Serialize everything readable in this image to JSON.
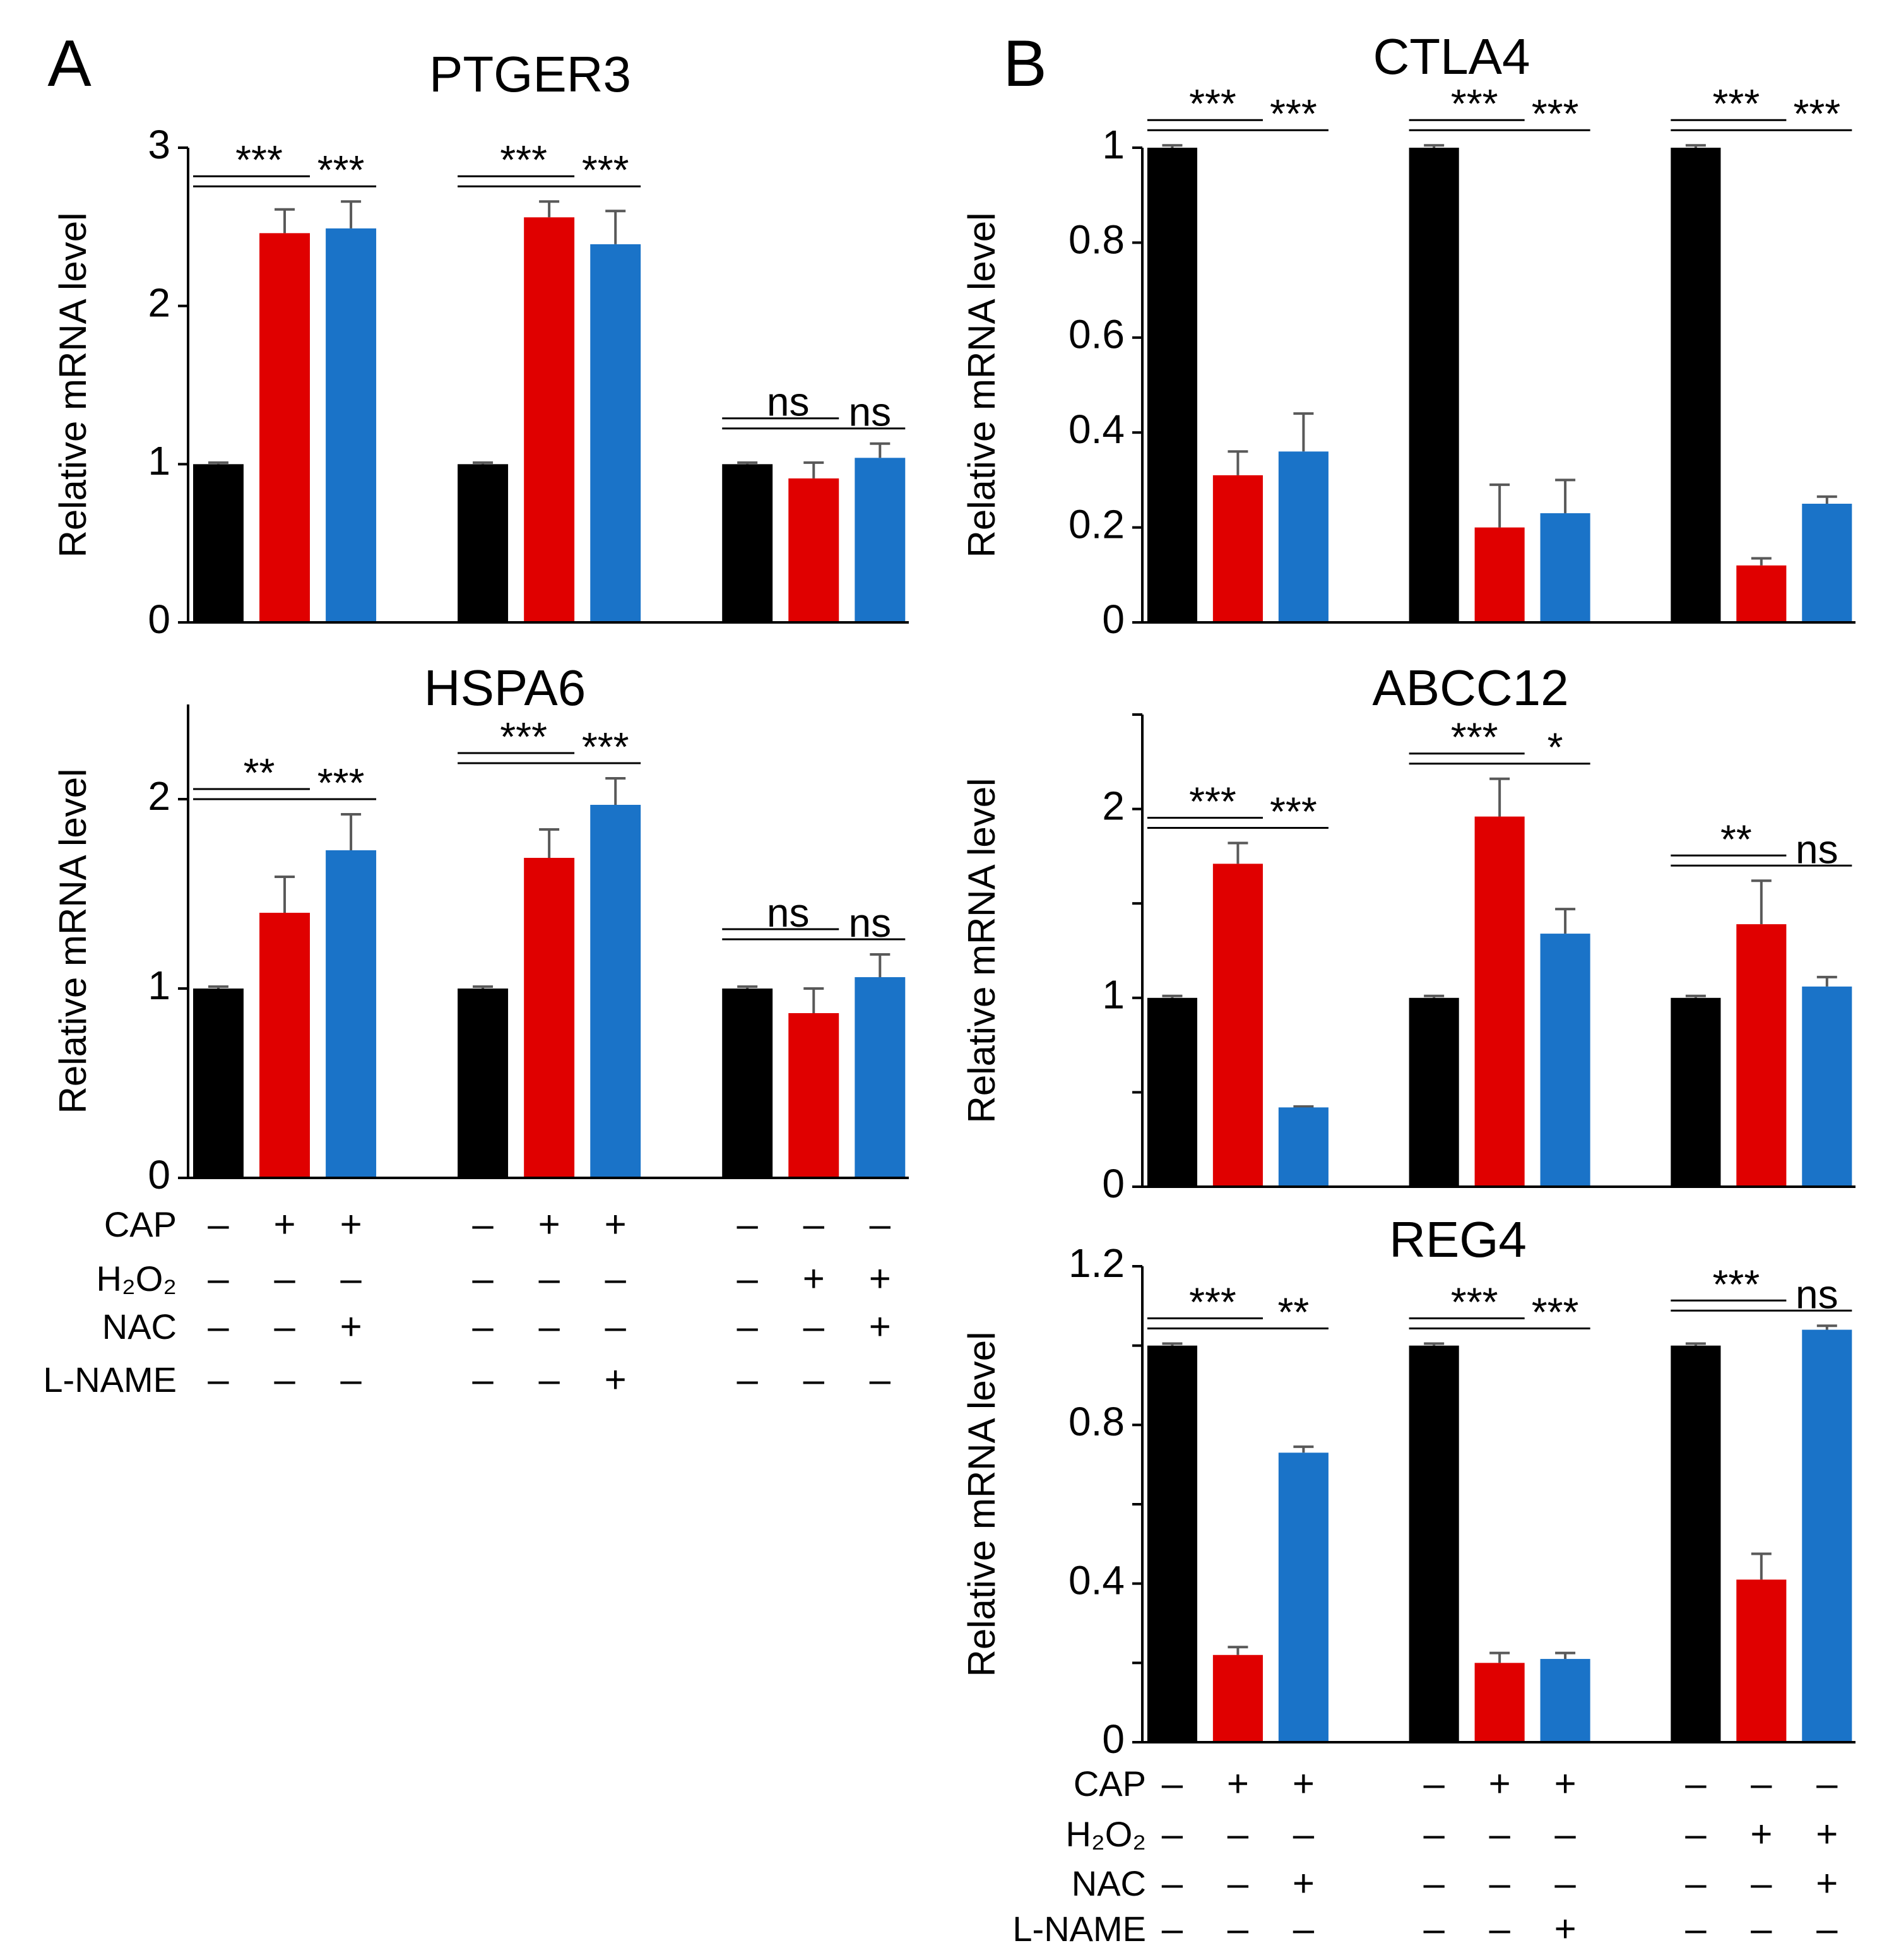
{
  "panels": [
    "A",
    "B"
  ],
  "chart_data": [
    {
      "type": "bar",
      "title": "PTGER3",
      "ylabel": "Relative mRNA level",
      "colors": [
        "#000000",
        "#e00000",
        "#1a73c8",
        "#000000",
        "#e00000",
        "#1a73c8",
        "#000000",
        "#e00000",
        "#1a73c8"
      ],
      "values": [
        1,
        2.46,
        2.49,
        1,
        2.56,
        2.39,
        1,
        0.91,
        1.04
      ],
      "errors": [
        0.01,
        0.15,
        0.17,
        0.01,
        0.1,
        0.21,
        0.01,
        0.1,
        0.09
      ],
      "ylim": [
        0,
        3
      ],
      "yticks": [
        0,
        1,
        2,
        3
      ],
      "minor_yticks": [],
      "significance": [
        [
          "***",
          "***"
        ],
        [
          "***",
          "***"
        ],
        [
          "ns",
          "ns"
        ]
      ]
    },
    {
      "type": "bar",
      "title": "HSPA6",
      "ylabel": "Relative mRNA level",
      "colors": [
        "#000000",
        "#e00000",
        "#1a73c8",
        "#000000",
        "#e00000",
        "#1a73c8",
        "#000000",
        "#e00000",
        "#1a73c8"
      ],
      "values": [
        1,
        1.4,
        1.73,
        1,
        1.69,
        1.97,
        1,
        0.87,
        1.06
      ],
      "errors": [
        0.01,
        0.19,
        0.19,
        0.01,
        0.15,
        0.14,
        0.01,
        0.13,
        0.12
      ],
      "ylim": [
        0,
        2.5
      ],
      "yticks": [
        0,
        1,
        2
      ],
      "minor_yticks": [],
      "significance": [
        [
          "**",
          "***"
        ],
        [
          "***",
          "***"
        ],
        [
          "ns",
          "ns"
        ]
      ]
    },
    {
      "type": "bar",
      "title": "CTLA4",
      "ylabel": "Relative mRNA level",
      "colors": [
        "#000000",
        "#e00000",
        "#1a73c8",
        "#000000",
        "#e00000",
        "#1a73c8",
        "#000000",
        "#e00000",
        "#1a73c8"
      ],
      "values": [
        1,
        0.31,
        0.36,
        1,
        0.2,
        0.23,
        1,
        0.12,
        0.25
      ],
      "errors": [
        0.005,
        0.05,
        0.08,
        0.005,
        0.09,
        0.07,
        0.005,
        0.015,
        0.015
      ],
      "ylim": [
        0,
        1
      ],
      "yticks": [
        0,
        0.2,
        0.4,
        0.6,
        0.8,
        1
      ],
      "minor_yticks": [],
      "significance": [
        [
          "***",
          "***"
        ],
        [
          "***",
          "***"
        ],
        [
          "***",
          "***"
        ]
      ]
    },
    {
      "type": "bar",
      "title": "ABCC12",
      "ylabel": "Relative mRNA level",
      "colors": [
        "#000000",
        "#e00000",
        "#1a73c8",
        "#000000",
        "#e00000",
        "#1a73c8",
        "#000000",
        "#e00000",
        "#1a73c8"
      ],
      "values": [
        1,
        1.71,
        0.42,
        1,
        1.96,
        1.34,
        1,
        1.39,
        1.06
      ],
      "errors": [
        0.01,
        0.11,
        0.005,
        0.01,
        0.2,
        0.13,
        0.01,
        0.23,
        0.05
      ],
      "ylim": [
        0,
        2.5
      ],
      "yticks": [
        0,
        1,
        2
      ],
      "minor_yticks": [
        0.5,
        1.5,
        2.5
      ],
      "significance": [
        [
          "***",
          "***"
        ],
        [
          "***",
          "*"
        ],
        [
          "**",
          "ns"
        ]
      ]
    },
    {
      "type": "bar",
      "title": "REG4",
      "ylabel": "Relative mRNA level",
      "colors": [
        "#000000",
        "#e00000",
        "#1a73c8",
        "#000000",
        "#e00000",
        "#1a73c8",
        "#000000",
        "#e00000",
        "#1a73c8"
      ],
      "values": [
        1,
        0.22,
        0.73,
        1,
        0.2,
        0.21,
        1,
        0.41,
        1.04
      ],
      "errors": [
        0.005,
        0.02,
        0.015,
        0.005,
        0.025,
        0.015,
        0.005,
        0.065,
        0.01
      ],
      "ylim": [
        0,
        1.2
      ],
      "yticks": [
        0,
        0.4,
        0.8,
        1.2
      ],
      "minor_yticks": [
        0.2,
        0.6,
        1
      ],
      "significance": [
        [
          "***",
          "**"
        ],
        [
          "***",
          "***"
        ],
        [
          "***",
          "ns"
        ]
      ]
    }
  ],
  "treatments": [
    {
      "rows": [
        {
          "label": "CAP",
          "signs": [
            "–",
            "+",
            "+",
            "–",
            "+",
            "+",
            "–",
            "–",
            "–"
          ]
        },
        {
          "label": "H₂O₂",
          "signs": [
            "–",
            "–",
            "–",
            "–",
            "–",
            "–",
            "–",
            "+",
            "+"
          ]
        },
        {
          "label": "NAC",
          "signs": [
            "–",
            "–",
            "+",
            "–",
            "–",
            "–",
            "–",
            "–",
            "+"
          ]
        },
        {
          "label": "L-NAME",
          "signs": [
            "–",
            "–",
            "–",
            "–",
            "–",
            "+",
            "–",
            "–",
            "–"
          ]
        }
      ]
    },
    {
      "rows": [
        {
          "label": "CAP",
          "signs": [
            "–",
            "+",
            "+",
            "–",
            "+",
            "+",
            "–",
            "–",
            "–"
          ]
        },
        {
          "label": "H₂O₂",
          "signs": [
            "–",
            "–",
            "–",
            "–",
            "–",
            "–",
            "–",
            "+",
            "+"
          ]
        },
        {
          "label": "NAC",
          "signs": [
            "–",
            "–",
            "+",
            "–",
            "–",
            "–",
            "–",
            "–",
            "+"
          ]
        },
        {
          "label": "L-NAME",
          "signs": [
            "–",
            "–",
            "–",
            "–",
            "–",
            "+",
            "–",
            "–",
            "–"
          ]
        }
      ]
    }
  ]
}
